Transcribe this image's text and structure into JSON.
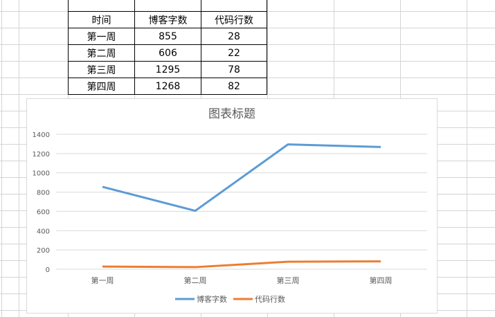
{
  "table": {
    "headers": [
      "时间",
      "博客字数",
      "代码行数"
    ],
    "rows": [
      [
        "第一周",
        "855",
        "28"
      ],
      [
        "第二周",
        "606",
        "22"
      ],
      [
        "第三周",
        "1295",
        "78"
      ],
      [
        "第四周",
        "1268",
        "82"
      ]
    ]
  },
  "chart_data": {
    "type": "line",
    "title": "图表标题",
    "categories": [
      "第一周",
      "第二周",
      "第三周",
      "第四周"
    ],
    "series": [
      {
        "name": "博客字数",
        "values": [
          855,
          606,
          1295,
          1268
        ],
        "color": "#5b9bd5"
      },
      {
        "name": "代码行数",
        "values": [
          28,
          22,
          78,
          82
        ],
        "color": "#ed7d31"
      }
    ],
    "ylim": [
      0,
      1400
    ],
    "yticks": [
      0,
      200,
      400,
      600,
      800,
      1000,
      1200,
      1400
    ],
    "grid": true,
    "legend": "bottom"
  }
}
